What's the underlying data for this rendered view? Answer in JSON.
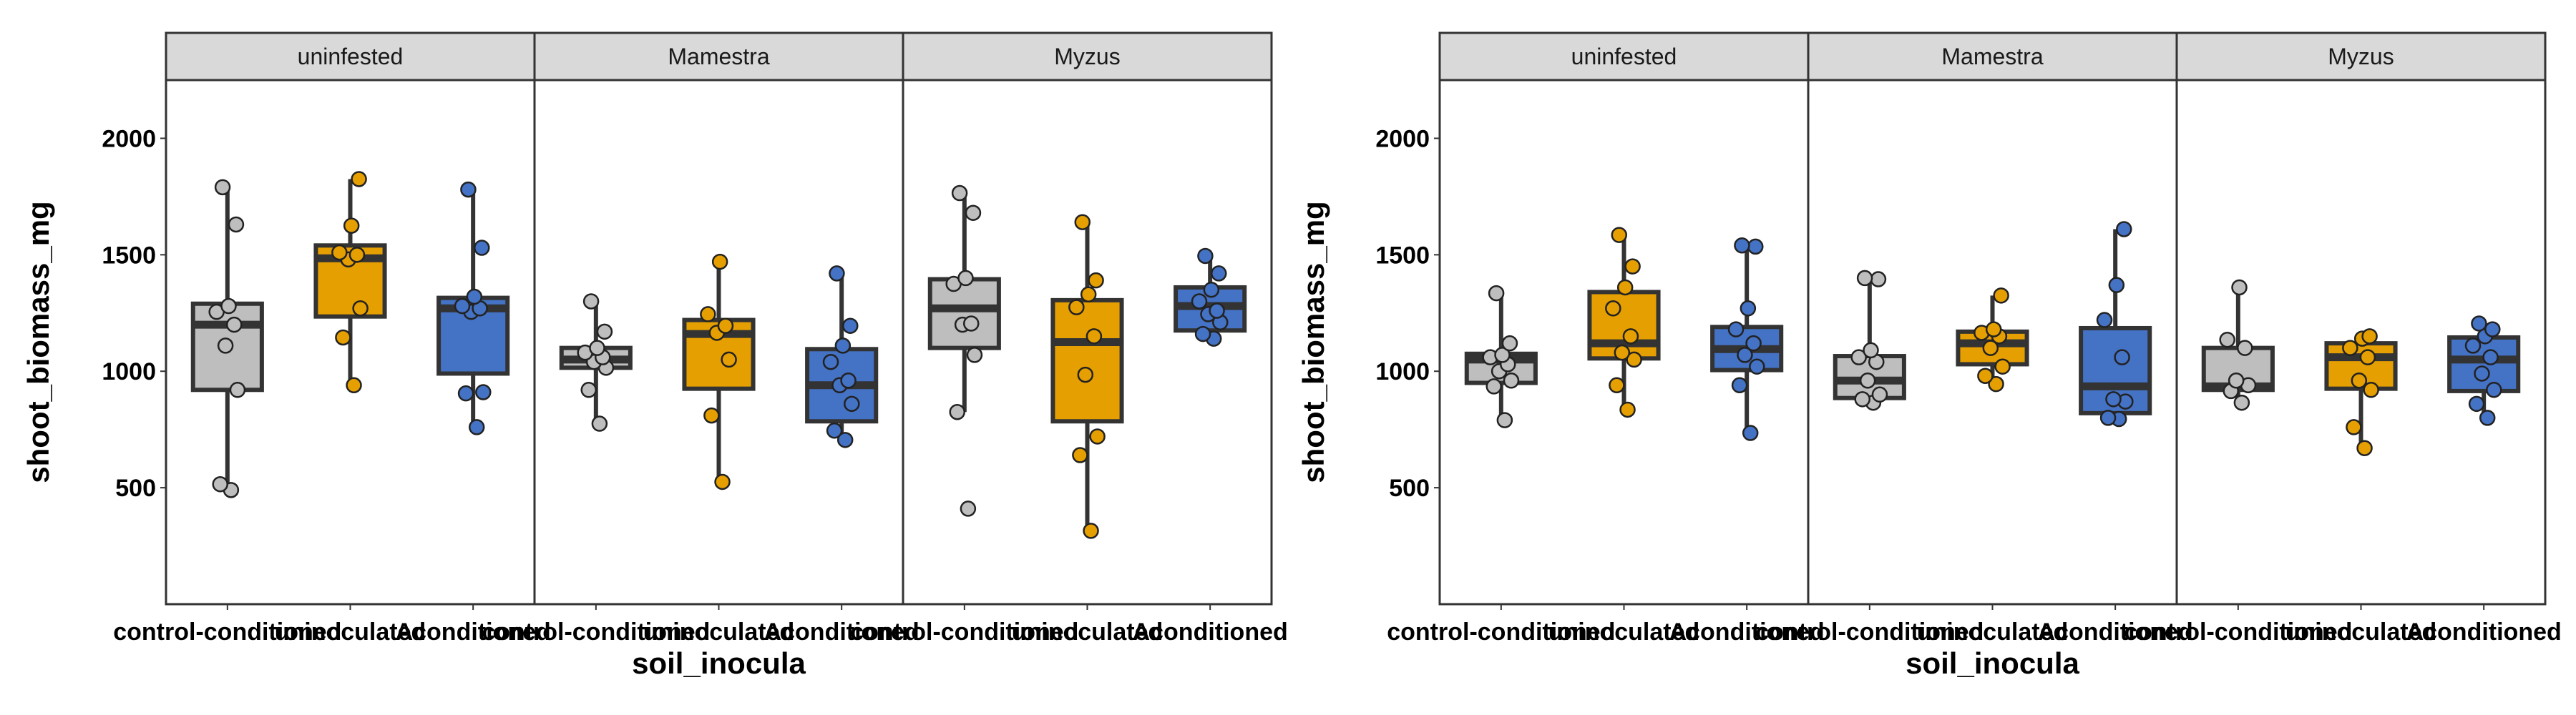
{
  "chart_data": [
    {
      "type": "box",
      "xlabel": "soil_inocula",
      "ylabel": "shoot_biomass_mg",
      "ylim": [
        0,
        2250
      ],
      "y_ticks": [
        500,
        1000,
        1500,
        2000
      ],
      "facets": [
        "uninfested",
        "Mamestra",
        "Myzus"
      ],
      "categories": [
        "control-conditioned",
        "uninoculated",
        "Aconditioned"
      ],
      "colors": {
        "control-conditioned": "#bebebe",
        "uninoculated": "#e69f00",
        "Aconditioned": "#4472c4"
      },
      "panels": [
        {
          "facet": "uninfested",
          "boxes": [
            {
              "category": "control-conditioned",
              "q1": 920,
              "median": 1200,
              "q3": 1290,
              "whisker_low": 490,
              "whisker_high": 1790,
              "points": [
                490,
                515,
                920,
                1110,
                1200,
                1255,
                1280,
                1630,
                1790
              ]
            },
            {
              "category": "uninoculated",
              "q1": 1235,
              "median": 1485,
              "q3": 1540,
              "whisker_low": 940,
              "whisker_high": 1825,
              "points": [
                940,
                1145,
                1270,
                1480,
                1500,
                1510,
                1625,
                1825
              ]
            },
            {
              "category": "Aconditioned",
              "q1": 990,
              "median": 1270,
              "q3": 1315,
              "whisker_low": 760,
              "whisker_high": 1780,
              "points": [
                760,
                905,
                910,
                1255,
                1270,
                1280,
                1320,
                1530,
                1780
              ]
            }
          ]
        },
        {
          "facet": "Mamestra",
          "boxes": [
            {
              "category": "control-conditioned",
              "q1": 1015,
              "median": 1050,
              "q3": 1100,
              "whisker_low": 775,
              "whisker_high": 1300,
              "points": [
                775,
                920,
                1015,
                1040,
                1060,
                1080,
                1100,
                1170,
                1300
              ]
            },
            {
              "category": "uninoculated",
              "q1": 925,
              "median": 1160,
              "q3": 1220,
              "whisker_low": 525,
              "whisker_high": 1470,
              "points": [
                525,
                810,
                1050,
                1165,
                1195,
                1245,
                1470
              ]
            },
            {
              "category": "Aconditioned",
              "q1": 785,
              "median": 940,
              "q3": 1095,
              "whisker_low": 705,
              "whisker_high": 1420,
              "points": [
                705,
                745,
                860,
                940,
                960,
                1040,
                1110,
                1195,
                1420
              ]
            }
          ]
        },
        {
          "facet": "Myzus",
          "boxes": [
            {
              "category": "control-conditioned",
              "q1": 1100,
              "median": 1270,
              "q3": 1395,
              "whisker_low": 825,
              "whisker_high": 1765,
              "points": [
                410,
                825,
                1070,
                1200,
                1205,
                1375,
                1400,
                1680,
                1765
              ]
            },
            {
              "category": "uninoculated",
              "q1": 785,
              "median": 1125,
              "q3": 1305,
              "whisker_low": 315,
              "whisker_high": 1640,
              "points": [
                315,
                640,
                720,
                985,
                1150,
                1275,
                1330,
                1390,
                1640
              ]
            },
            {
              "category": "Aconditioned",
              "q1": 1175,
              "median": 1280,
              "q3": 1360,
              "whisker_low": 1140,
              "whisker_high": 1495,
              "points": [
                1140,
                1160,
                1210,
                1245,
                1260,
                1300,
                1350,
                1420,
                1495
              ]
            }
          ]
        }
      ]
    },
    {
      "type": "box",
      "xlabel": "soil_inocula",
      "ylabel": "shoot_biomass_mg",
      "ylim": [
        0,
        2250
      ],
      "y_ticks": [
        500,
        1000,
        1500,
        2000
      ],
      "facets": [
        "uninfested",
        "Mamestra",
        "Myzus"
      ],
      "categories": [
        "control-conditioned",
        "uninoculated",
        "Aconditioned"
      ],
      "colors": {
        "control-conditioned": "#bebebe",
        "uninoculated": "#e69f00",
        "Aconditioned": "#4472c4"
      },
      "panels": [
        {
          "facet": "uninfested",
          "boxes": [
            {
              "category": "control-conditioned",
              "q1": 950,
              "median": 1050,
              "q3": 1075,
              "whisker_low": 790,
              "whisker_high": 1335,
              "points": [
                790,
                935,
                960,
                1000,
                1030,
                1060,
                1070,
                1120,
                1335
              ]
            },
            {
              "category": "uninoculated",
              "q1": 1055,
              "median": 1120,
              "q3": 1340,
              "whisker_low": 835,
              "whisker_high": 1585,
              "points": [
                835,
                940,
                1050,
                1080,
                1150,
                1270,
                1360,
                1450,
                1585
              ]
            },
            {
              "category": "Aconditioned",
              "q1": 1005,
              "median": 1095,
              "q3": 1190,
              "whisker_low": 735,
              "whisker_high": 1535,
              "points": [
                735,
                940,
                1020,
                1070,
                1120,
                1180,
                1270,
                1535,
                1540
              ]
            }
          ]
        },
        {
          "facet": "Mamestra",
          "boxes": [
            {
              "category": "control-conditioned",
              "q1": 885,
              "median": 960,
              "q3": 1065,
              "whisker_low": 865,
              "whisker_high": 1395,
              "points": [
                865,
                880,
                900,
                960,
                1040,
                1060,
                1090,
                1395,
                1400
              ]
            },
            {
              "category": "uninoculated",
              "q1": 1030,
              "median": 1120,
              "q3": 1170,
              "whisker_low": 945,
              "whisker_high": 1325,
              "points": [
                945,
                980,
                1020,
                1100,
                1150,
                1165,
                1180,
                1325
              ]
            },
            {
              "category": "Aconditioned",
              "q1": 820,
              "median": 935,
              "q3": 1185,
              "whisker_low": 795,
              "whisker_high": 1610,
              "points": [
                795,
                800,
                870,
                880,
                1060,
                1220,
                1370,
                1610
              ]
            }
          ]
        },
        {
          "facet": "Myzus",
          "boxes": [
            {
              "category": "control-conditioned",
              "q1": 920,
              "median": 935,
              "q3": 1100,
              "whisker_low": 865,
              "whisker_high": 1360,
              "points": [
                865,
                915,
                940,
                960,
                1100,
                1135,
                1360
              ]
            },
            {
              "category": "uninoculated",
              "q1": 925,
              "median": 1060,
              "q3": 1120,
              "whisker_low": 670,
              "whisker_high": 1150,
              "points": [
                670,
                760,
                920,
                960,
                1060,
                1100,
                1140,
                1150
              ]
            },
            {
              "category": "Aconditioned",
              "q1": 915,
              "median": 1050,
              "q3": 1145,
              "whisker_low": 800,
              "whisker_high": 1205,
              "points": [
                800,
                860,
                920,
                990,
                1060,
                1110,
                1150,
                1180,
                1205
              ]
            }
          ]
        }
      ]
    }
  ]
}
